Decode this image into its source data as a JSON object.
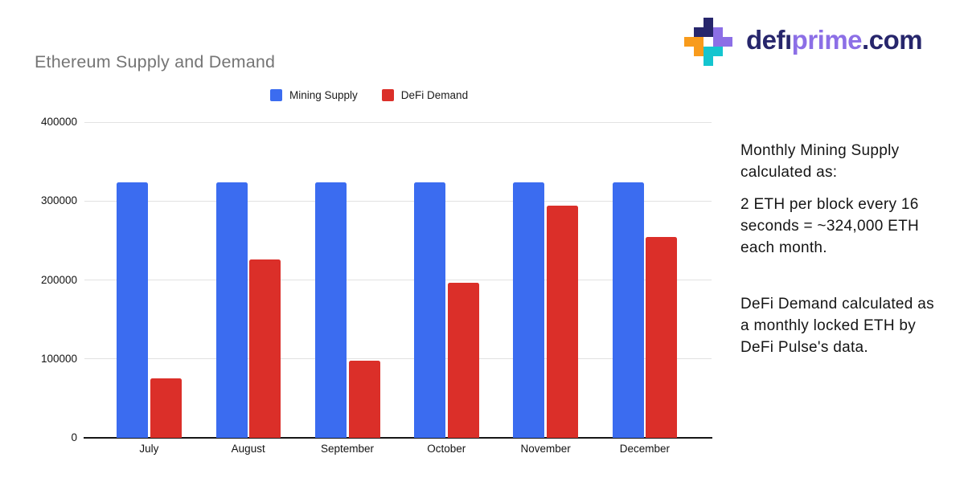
{
  "page": {
    "background": "#ffffff"
  },
  "brand": {
    "wordmark": {
      "defi": "defı",
      "prime": "prime",
      "tld": ".com"
    },
    "colors": {
      "navy": "#27266c",
      "purple": "#8c6fe6",
      "orange": "#f89b1c",
      "teal": "#14c5cf"
    }
  },
  "chart_data": {
    "type": "bar",
    "title": "Ethereum Supply and Demand",
    "categories": [
      "July",
      "August",
      "September",
      "October",
      "November",
      "December"
    ],
    "series": [
      {
        "name": "Mining Supply",
        "color": "#3b6cf0",
        "values": [
          324000,
          324000,
          324000,
          324000,
          324000,
          324000
        ]
      },
      {
        "name": "DeFi Demand",
        "color": "#db2f29",
        "values": [
          75000,
          226000,
          98000,
          196000,
          294000,
          254000
        ]
      }
    ],
    "xlabel": "",
    "ylabel": "",
    "ylim": [
      0,
      400000
    ],
    "yticks": [
      0,
      100000,
      200000,
      300000,
      400000
    ],
    "ytick_labels": [
      "0",
      "100000",
      "200000",
      "300000",
      "400000"
    ],
    "grid": true,
    "gridline_color": "#e2e2e2",
    "axis_color": "#161616",
    "legend_position": "top"
  },
  "notes": {
    "p1": "Monthly Mining Supply calculated as:",
    "p2": "2 ETH per block every 16 seconds = ~324,000 ETH each month.",
    "p3": "DeFi Demand calculated as a monthly locked ETH by DeFi Pulse's data."
  }
}
